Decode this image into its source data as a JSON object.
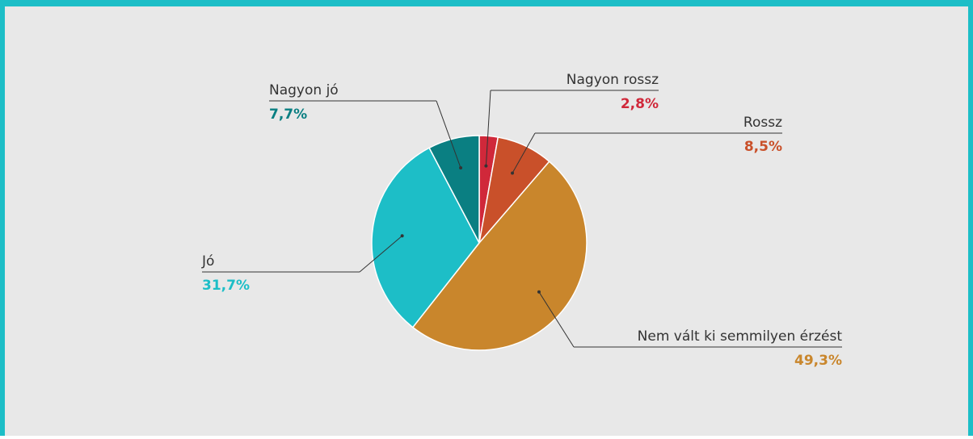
{
  "chart_data": {
    "type": "pie",
    "categories": [
      "Nagyon rossz",
      "Rossz",
      "Nem vált ki semmilyen érzést",
      "Jó",
      "Nagyon jó"
    ],
    "values": [
      2.8,
      8.5,
      49.3,
      31.7,
      7.7
    ],
    "value_labels": [
      "2,8%",
      "8,5%",
      "49,3%",
      "31,7%",
      "7,7%"
    ],
    "colors": [
      "#d0283a",
      "#c9502a",
      "#c9862c",
      "#1dbec7",
      "#0a7f82"
    ]
  }
}
